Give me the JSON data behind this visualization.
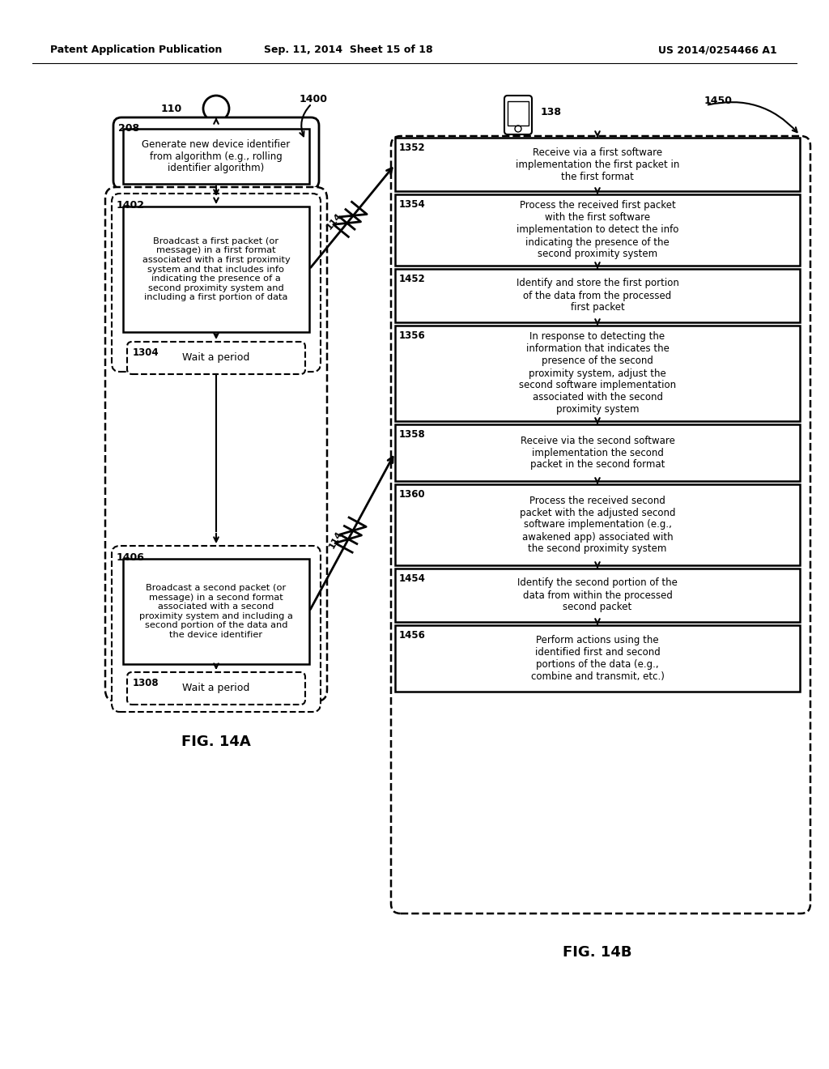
{
  "title_left": "Patent Application Publication",
  "title_center": "Sep. 11, 2014  Sheet 15 of 18",
  "title_right": "US 2014/0254466 A1",
  "fig14a_label": "FIG. 14A",
  "fig14b_label": "FIG. 14B",
  "bg_color": "#ffffff"
}
